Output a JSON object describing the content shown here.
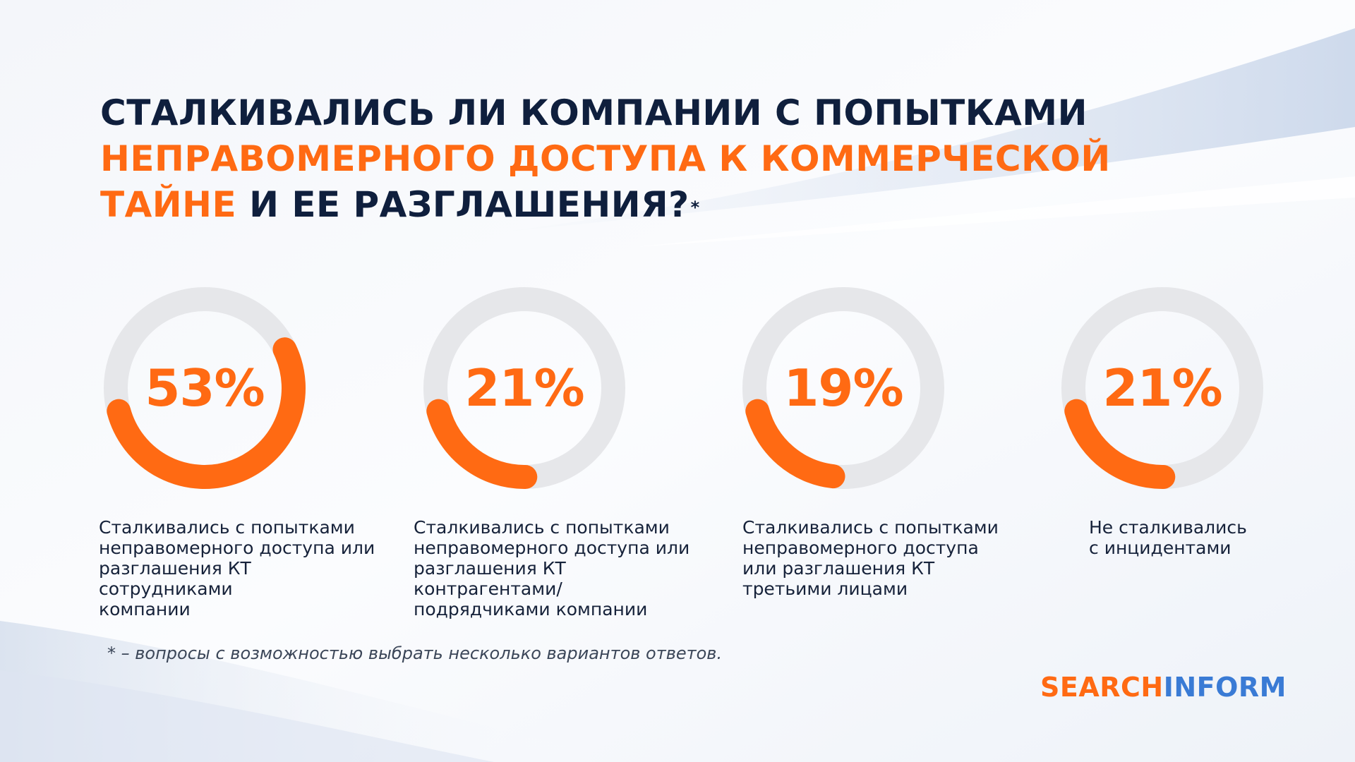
{
  "title": {
    "line1": "СТАЛКИВАЛИСЬ ЛИ КОМПАНИИ С ПОПЫТКАМИ",
    "line2": "НЕПРАВОМЕРНОГО ДОСТУПА К КОММЕРЧЕСКОЙ",
    "line3_highlight": "ТАЙНЕ",
    "line3_rest": " И ЕЕ РАЗГЛАШЕНИЯ?",
    "asterisk": "*"
  },
  "colors": {
    "accent": "#ff6a13",
    "track": "#e6e7ea",
    "title": "#0f1f3d",
    "logo_blue": "#3a7bd5"
  },
  "chart_data": {
    "type": "donut",
    "items": [
      {
        "value": 53,
        "label": "53%",
        "caption": "Сталкивались с попытками\nнеправомерного доступа или\nразглашения КТ сотрудниками\nкомпании"
      },
      {
        "value": 21,
        "label": "21%",
        "caption": "Сталкивались с попытками\nнеправомерного доступа или\nразглашения КТ контрагентами/\nподрядчиками компании"
      },
      {
        "value": 19,
        "label": "19%",
        "caption": "Сталкивались с попытками\nнеправомерного доступа\nили разглашения КТ\nтретьими лицами"
      },
      {
        "value": 21,
        "label": "21%",
        "caption": "Не сталкивались\nс инцидентами"
      }
    ]
  },
  "footnote": "* – вопросы с возможностью выбрать несколько вариантов ответов.",
  "logo": {
    "part1": "SEARCH",
    "part2": "INFORM"
  }
}
